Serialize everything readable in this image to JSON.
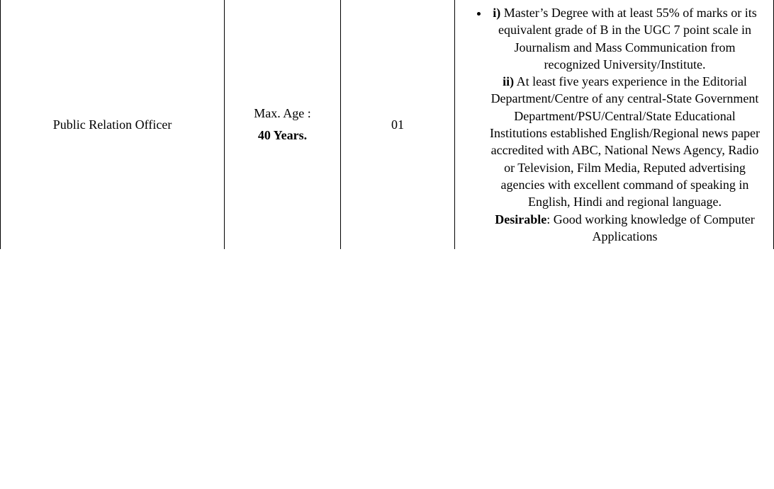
{
  "row": {
    "position": "Public Relation Officer",
    "age_label": "Max. Age :",
    "age_value": "40 Years.",
    "vacancies": "01",
    "qual": {
      "i_label": "i)",
      "i_text": " Master’s Degree with at least 55% of marks or its equivalent grade of B in the UGC 7 point scale in Journalism and Mass Communication from recognized University/Institute.",
      "ii_label": "ii)",
      "ii_text": " At least five years experience in the Editorial Department/Centre of any central-State Government Department/PSU/Central/State Educational Institutions established English/Regional news paper accredited with ABC, National News Agency, Radio or Television, Film Media, Reputed advertising agencies with excellent command of speaking in English, Hindi and regional language.",
      "desirable_label": "Desirable",
      "desirable_text": ": Good working knowledge of Computer Applications"
    }
  }
}
